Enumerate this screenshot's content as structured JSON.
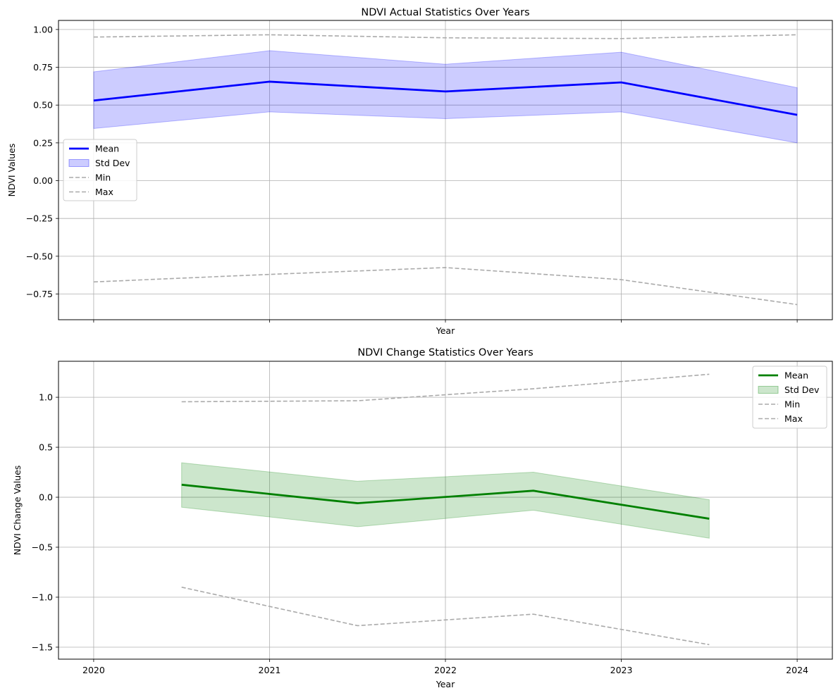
{
  "chart_data": [
    {
      "type": "line",
      "title": "NDVI Actual Statistics Over Years",
      "xlabel": "Year",
      "ylabel": "NDVI Values",
      "xlim": [
        2019.8,
        2024.2
      ],
      "ylim": [
        -0.92,
        1.06
      ],
      "xticks": [
        2020,
        2021,
        2022,
        2023,
        2024
      ],
      "xticklabels_shown": false,
      "yticks": [
        -0.75,
        -0.5,
        -0.25,
        0.0,
        0.25,
        0.5,
        0.75,
        1.0
      ],
      "ytick_labels": [
        "−0.75",
        "−0.50",
        "−0.25",
        "0.00",
        "0.25",
        "0.50",
        "0.75",
        "1.00"
      ],
      "grid": true,
      "legend_placement": "center-left",
      "x": [
        2020,
        2021,
        2022,
        2023,
        2024
      ],
      "series": [
        {
          "name": "Mean",
          "style": "solid",
          "color": "#0000ff",
          "values": [
            0.53,
            0.655,
            0.59,
            0.65,
            0.435
          ]
        },
        {
          "name": "Std Dev",
          "style": "band",
          "color": "#0000ff",
          "lower": [
            0.345,
            0.455,
            0.41,
            0.455,
            0.25
          ],
          "upper": [
            0.72,
            0.86,
            0.77,
            0.85,
            0.615
          ]
        },
        {
          "name": "Min",
          "style": "dashed",
          "color": "#aaaaaa",
          "values": [
            -0.67,
            -0.62,
            -0.575,
            -0.655,
            -0.82
          ]
        },
        {
          "name": "Max",
          "style": "dashed",
          "color": "#aaaaaa",
          "values": [
            0.95,
            0.965,
            0.945,
            0.94,
            0.965
          ]
        }
      ]
    },
    {
      "type": "line",
      "title": "NDVI Change Statistics Over Years",
      "xlabel": "Year",
      "ylabel": "NDVI Change Values",
      "xlim": [
        2019.8,
        2024.2
      ],
      "ylim": [
        -1.62,
        1.36
      ],
      "xticks": [
        2020,
        2021,
        2022,
        2023,
        2024
      ],
      "xtick_labels": [
        "2020",
        "2021",
        "2022",
        "2023",
        "2024"
      ],
      "yticks": [
        -1.5,
        -1.0,
        -0.5,
        0.0,
        0.5,
        1.0
      ],
      "ytick_labels": [
        "−1.5",
        "−1.0",
        "−0.5",
        "0.0",
        "0.5",
        "1.0"
      ],
      "grid": true,
      "legend_placement": "upper-right",
      "x": [
        2020.5,
        2021.5,
        2022.5,
        2023.5
      ],
      "series": [
        {
          "name": "Mean",
          "style": "solid",
          "color": "#008000",
          "values": [
            0.125,
            -0.06,
            0.065,
            -0.215
          ]
        },
        {
          "name": "Std Dev",
          "style": "band",
          "color": "#008000",
          "lower": [
            -0.1,
            -0.295,
            -0.13,
            -0.41
          ],
          "upper": [
            0.345,
            0.16,
            0.25,
            -0.025
          ]
        },
        {
          "name": "Min",
          "style": "dashed",
          "color": "#aaaaaa",
          "values": [
            0.955,
            0.965,
            1.085,
            1.23
          ]
        },
        {
          "name": "Max",
          "style": "dashed",
          "color": "#aaaaaa",
          "values": [
            -0.9,
            -1.285,
            -1.17,
            -1.475
          ]
        }
      ]
    }
  ],
  "colors": {
    "grid": "#b0b0b0",
    "axis": "#000000",
    "legend_border": "#cccccc"
  }
}
